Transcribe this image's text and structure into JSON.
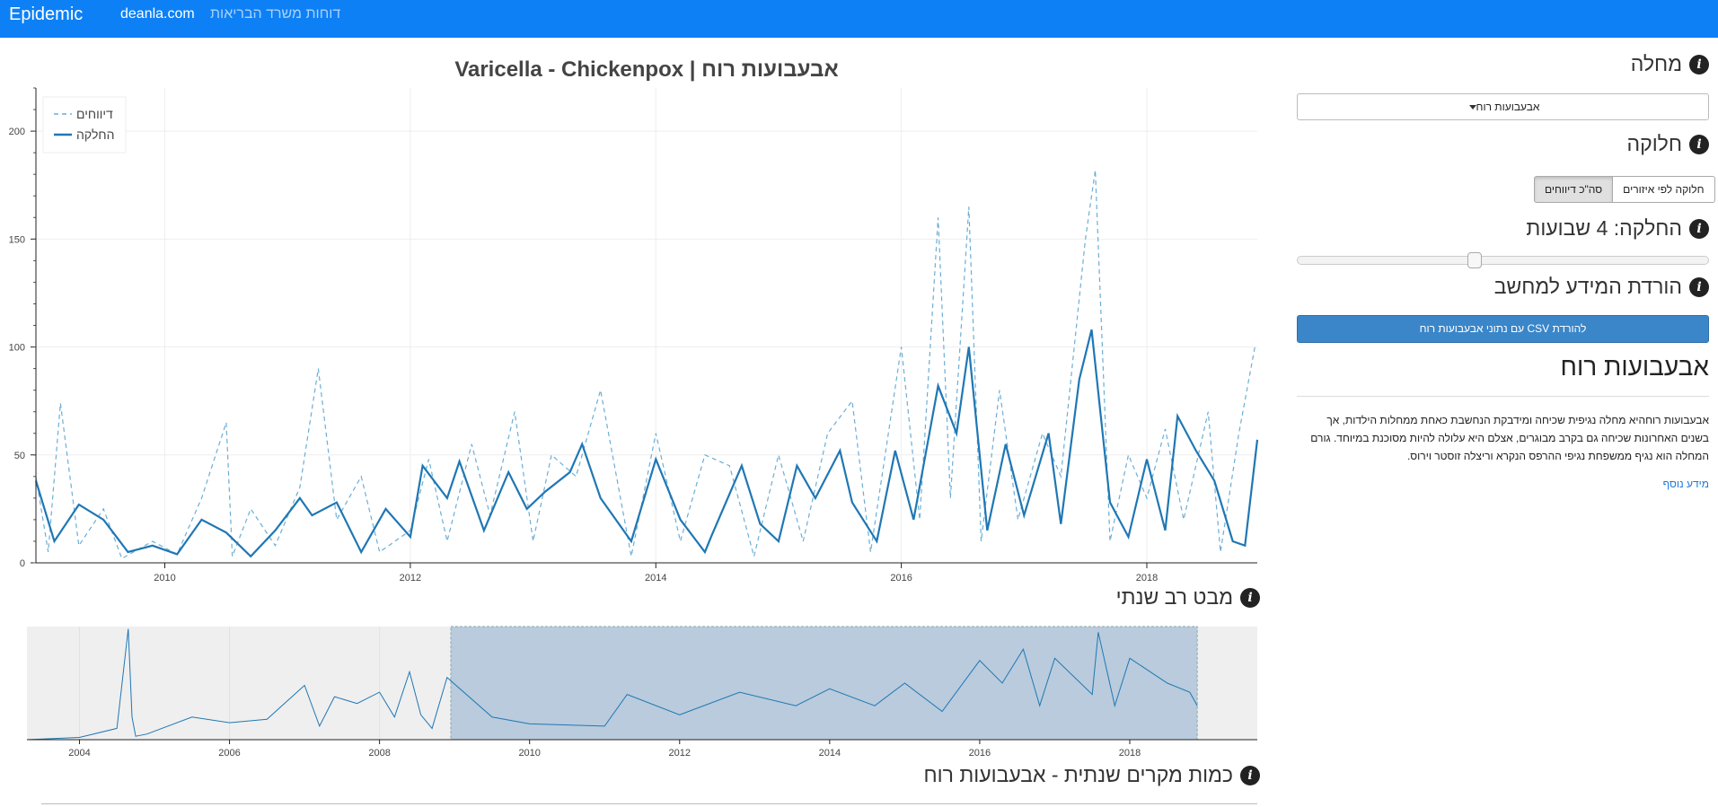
{
  "navbar": {
    "brand": "Epidemic",
    "home_link": "deanla.com",
    "reports_link": "דוחות משרד הבריאות"
  },
  "main_chart": {
    "title": "Varicella - Chickenpox | אבעבועות רוח",
    "legend": {
      "reports": "דיווחים",
      "smoothed": "החלקה"
    },
    "y_ticks": [
      "0",
      "50",
      "100",
      "150",
      "200"
    ],
    "x_ticks": [
      "2010",
      "2012",
      "2014",
      "2016",
      "2018"
    ]
  },
  "sidebar": {
    "disease_heading": "מחלה",
    "disease_selected": "אבעבועות רוח",
    "split_heading": "חלוקה",
    "split_options": {
      "by_region": "חלוקה לפי איזורים",
      "total": "סה\"כ דיווחים"
    },
    "smoothing_heading": "החלקה: 4 שבועות",
    "smoothing_weeks": 4,
    "download_heading": "הורדת המידע למחשב",
    "download_button": "להורדת CSV עם נתוני אבעבועות רוח",
    "disease_title": "אבעבועות רוח",
    "description": "אבעבועות רוחהיא מחלה נגיפית שכיחה ומידבקת הנחשבת כאחת ממחלות הילדות, אך בשנים האחרונות שכיחה גם בקרב מבוגרים, אצלם היא עלולה להיות מסוכנת במיוחד. גורם המחלה הוא נגיף ממשפחת נגיפי ההרפס הנקרא וריצלה זוסטר וירוס.",
    "more_info": "מידע נוסף"
  },
  "overview": {
    "heading": "מבט רב שנתי",
    "x_ticks": [
      "2004",
      "2006",
      "2008",
      "2010",
      "2012",
      "2014",
      "2016",
      "2018"
    ]
  },
  "annual": {
    "heading": "כמות מקרים שנתית - אבעבועות רוח"
  },
  "colors": {
    "navbar": "#0d80f6",
    "line": "#1f77b4",
    "dashed": "#6baed6",
    "brush": "#b9cbdc",
    "button": "#3b86c8"
  },
  "chart_data": [
    {
      "type": "line",
      "title": "Varicella - Chickenpox | אבעבועות רוח",
      "xlabel": "",
      "ylabel": "",
      "ylim": [
        0,
        220
      ],
      "xlim": [
        2008.95,
        2018.9
      ],
      "legend_position": "top-left",
      "grid": true,
      "series": [
        {
          "name": "החלקה",
          "style": "solid",
          "x": [
            2008.95,
            2009.1,
            2009.3,
            2009.5,
            2009.7,
            2009.9,
            2010.1,
            2010.3,
            2010.5,
            2010.7,
            2010.9,
            2011.1,
            2011.2,
            2011.4,
            2011.6,
            2011.8,
            2012.0,
            2012.1,
            2012.3,
            2012.4,
            2012.6,
            2012.8,
            2012.95,
            2013.1,
            2013.3,
            2013.4,
            2013.55,
            2013.8,
            2014.0,
            2014.2,
            2014.4,
            2014.45,
            2014.7,
            2014.85,
            2015.0,
            2015.15,
            2015.3,
            2015.5,
            2015.6,
            2015.8,
            2015.95,
            2016.1,
            2016.3,
            2016.45,
            2016.55,
            2016.7,
            2016.85,
            2017.0,
            2017.2,
            2017.3,
            2017.45,
            2017.55,
            2017.7,
            2017.85,
            2018.0,
            2018.15,
            2018.25,
            2018.4,
            2018.55,
            2018.7,
            2018.8,
            2018.9
          ],
          "values": [
            38,
            10,
            27,
            20,
            5,
            8,
            4,
            20,
            14,
            3,
            15,
            30,
            22,
            28,
            5,
            25,
            12,
            45,
            30,
            47,
            15,
            42,
            25,
            33,
            42,
            55,
            30,
            10,
            48,
            20,
            5,
            12,
            45,
            18,
            10,
            45,
            30,
            52,
            28,
            10,
            52,
            20,
            82,
            60,
            100,
            15,
            55,
            22,
            60,
            18,
            85,
            108,
            28,
            12,
            48,
            15,
            68,
            52,
            38,
            10,
            8,
            57
          ]
        },
        {
          "name": "דיווחים",
          "style": "dashed",
          "x": [
            2008.95,
            2009.05,
            2009.15,
            2009.3,
            2009.5,
            2009.65,
            2009.9,
            2010.1,
            2010.3,
            2010.5,
            2010.55,
            2010.7,
            2010.9,
            2011.1,
            2011.25,
            2011.4,
            2011.6,
            2011.75,
            2012.0,
            2012.15,
            2012.3,
            2012.5,
            2012.65,
            2012.85,
            2013.0,
            2013.15,
            2013.35,
            2013.55,
            2013.8,
            2014.0,
            2014.2,
            2014.4,
            2014.6,
            2014.8,
            2015.0,
            2015.2,
            2015.4,
            2015.6,
            2015.75,
            2016.0,
            2016.15,
            2016.3,
            2016.4,
            2016.55,
            2016.65,
            2016.8,
            2016.95,
            2017.15,
            2017.3,
            2017.5,
            2017.58,
            2017.7,
            2017.85,
            2018.0,
            2018.15,
            2018.3,
            2018.5,
            2018.6,
            2018.75,
            2018.88
          ],
          "values": [
            40,
            5,
            74,
            8,
            25,
            2,
            10,
            4,
            30,
            65,
            3,
            25,
            8,
            35,
            90,
            20,
            40,
            5,
            15,
            48,
            10,
            55,
            22,
            70,
            10,
            50,
            40,
            80,
            3,
            60,
            10,
            50,
            45,
            3,
            50,
            10,
            60,
            75,
            5,
            100,
            20,
            160,
            30,
            165,
            10,
            80,
            20,
            60,
            40,
            150,
            182,
            10,
            50,
            30,
            62,
            20,
            70,
            5,
            60,
            100
          ]
        }
      ]
    },
    {
      "type": "line",
      "title": "מבט רב שנתי",
      "ylim": [
        0,
        100
      ],
      "xlim": [
        2003.3,
        2019.7
      ],
      "brush_range": [
        2008.95,
        2018.9
      ],
      "series": [
        {
          "name": "דיווחים",
          "x": [
            2003.3,
            2004.0,
            2004.5,
            2004.65,
            2004.7,
            2004.75,
            2004.9,
            2005.5,
            2006.0,
            2006.5,
            2007.0,
            2007.2,
            2007.4,
            2007.7,
            2008.0,
            2008.2,
            2008.4,
            2008.55,
            2008.7,
            2008.9,
            2009.5,
            2010.0,
            2011.0,
            2011.3,
            2012.0,
            2012.8,
            2013.55,
            2014.0,
            2014.6,
            2015.0,
            2015.5,
            2016.0,
            2016.3,
            2016.58,
            2016.8,
            2017.0,
            2017.5,
            2017.58,
            2017.8,
            2018.0,
            2018.5,
            2018.8,
            2018.9
          ],
          "values": [
            0,
            2,
            10,
            98,
            20,
            3,
            5,
            20,
            15,
            18,
            48,
            12,
            38,
            32,
            42,
            20,
            60,
            22,
            10,
            55,
            20,
            14,
            12,
            40,
            22,
            42,
            30,
            45,
            30,
            50,
            25,
            70,
            50,
            80,
            30,
            72,
            40,
            95,
            30,
            72,
            50,
            42,
            30
          ]
        }
      ]
    }
  ]
}
